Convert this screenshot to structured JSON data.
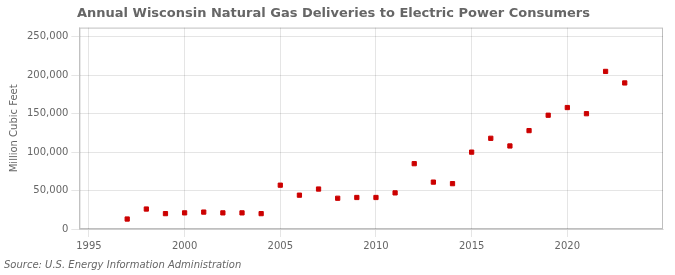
{
  "chart_data": {
    "type": "scatter",
    "title": "Annual Wisconsin Natural Gas Deliveries to Electric Power Consumers",
    "ylabel": "Million Cubic Feet",
    "annotations": [
      "Source: U.S. Energy Information Administration"
    ],
    "x": [
      1997,
      1998,
      1999,
      2000,
      2001,
      2002,
      2003,
      2004,
      2005,
      2006,
      2007,
      2008,
      2009,
      2010,
      2011,
      2012,
      2013,
      2014,
      2015,
      2016,
      2017,
      2018,
      2019,
      2020,
      2021,
      2022,
      2023
    ],
    "values": [
      13000,
      26000,
      20000,
      21000,
      22000,
      21000,
      21000,
      20000,
      57000,
      44000,
      52000,
      40000,
      41000,
      41000,
      47000,
      85000,
      61000,
      59000,
      100000,
      118000,
      108000,
      128000,
      148000,
      158000,
      150000,
      205000,
      190000
    ],
    "color": "#CC0000",
    "marker": "square",
    "xlim": [
      1994.5,
      2025
    ],
    "xticks": [
      1995,
      2000,
      2005,
      2010,
      2015,
      2020
    ],
    "ylim": [
      0,
      262000
    ],
    "yticks": [
      0,
      {
        "value": 50000,
        "label": "50,000"
      },
      {
        "value": 100000,
        "label": "100,000"
      },
      {
        "value": 150000,
        "label": "150,000"
      },
      {
        "value": 200000,
        "label": "200,000"
      },
      {
        "value": 250000,
        "label": "250,000"
      }
    ],
    "grid": true
  }
}
